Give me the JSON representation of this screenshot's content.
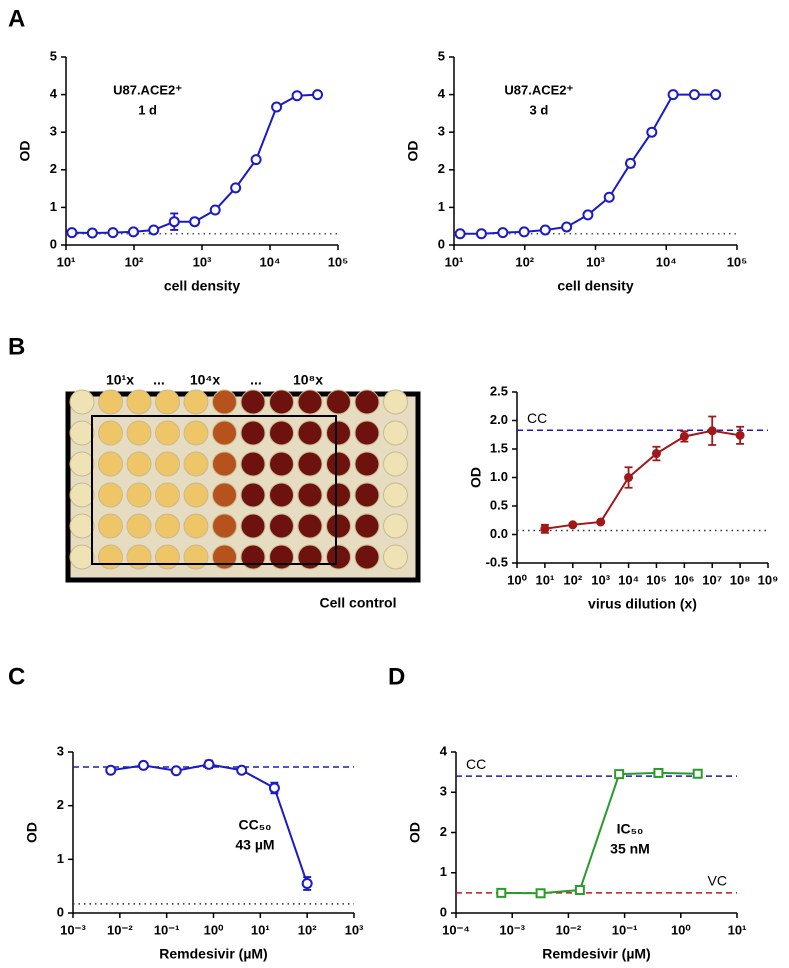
{
  "panel_labels": [
    "A",
    "B",
    "C",
    "D"
  ],
  "plate": {
    "labels": [
      "10¹x",
      "...",
      "10⁴x",
      "...",
      "10⁸x"
    ],
    "caption": "Cell control"
  },
  "chart_data": [
    {
      "type": "line",
      "title": "U87.ACE2⁺",
      "subtitle": "1 d",
      "xlabel": "cell density",
      "ylabel": "OD",
      "xscale": "log",
      "xlim": [
        10,
        100000
      ],
      "xticks": [
        {
          "value": 10,
          "label": "10¹"
        },
        {
          "value": 100,
          "label": "10²"
        },
        {
          "value": 1000,
          "label": "10³"
        },
        {
          "value": 10000,
          "label": "10⁴"
        },
        {
          "value": 100000,
          "label": "10⁵"
        }
      ],
      "ylim": [
        0,
        5
      ],
      "yticks": [
        0,
        1,
        2,
        3,
        4,
        5
      ],
      "reference_lines": [
        {
          "value": 0.3,
          "color": "#555555",
          "style": "dotted"
        }
      ],
      "series": [
        {
          "color": "#1a1ac8",
          "marker": "circle",
          "x": [
            12.2,
            24.4,
            49,
            98,
            195,
            391,
            781,
            1563,
            3125,
            6250,
            12500,
            25000,
            50000
          ],
          "values": [
            0.33,
            0.32,
            0.33,
            0.35,
            0.4,
            0.62,
            0.62,
            0.93,
            1.52,
            2.27,
            3.67,
            3.97,
            4.0
          ],
          "errors": [
            0,
            0,
            0,
            0,
            0,
            0.22,
            0,
            0,
            0,
            0,
            0,
            0,
            0
          ]
        }
      ]
    },
    {
      "type": "line",
      "title": "U87.ACE2⁺",
      "subtitle": "3 d",
      "xlabel": "cell density",
      "ylabel": "OD",
      "xscale": "log",
      "xlim": [
        10,
        100000
      ],
      "xticks": [
        {
          "value": 10,
          "label": "10¹"
        },
        {
          "value": 100,
          "label": "10²"
        },
        {
          "value": 1000,
          "label": "10³"
        },
        {
          "value": 10000,
          "label": "10⁴"
        },
        {
          "value": 100000,
          "label": "10⁵"
        }
      ],
      "ylim": [
        0,
        5
      ],
      "yticks": [
        0,
        1,
        2,
        3,
        4,
        5
      ],
      "reference_lines": [
        {
          "value": 0.3,
          "color": "#555555",
          "style": "dotted"
        }
      ],
      "series": [
        {
          "color": "#1a1ac8",
          "marker": "circle",
          "x": [
            12.2,
            24.4,
            49,
            98,
            195,
            391,
            781,
            1563,
            3125,
            6250,
            12500,
            25000,
            50000
          ],
          "values": [
            0.3,
            0.3,
            0.33,
            0.35,
            0.4,
            0.48,
            0.8,
            1.27,
            2.17,
            3.0,
            4.0,
            4.0,
            4.0
          ],
          "errors": [
            0,
            0,
            0,
            0,
            0,
            0,
            0,
            0,
            0.1,
            0,
            0,
            0,
            0
          ]
        }
      ]
    },
    {
      "type": "line",
      "xlabel": "virus dilution (x)",
      "ylabel": "OD",
      "xscale": "log",
      "xlim": [
        1,
        1000000000
      ],
      "xticks": [
        {
          "value": 1,
          "label": "10⁰"
        },
        {
          "value": 10,
          "label": "10¹"
        },
        {
          "value": 100,
          "label": "10²"
        },
        {
          "value": 1000,
          "label": "10³"
        },
        {
          "value": 10000,
          "label": "10⁴"
        },
        {
          "value": 100000,
          "label": "10⁵"
        },
        {
          "value": 1000000,
          "label": "10⁶"
        },
        {
          "value": 10000000,
          "label": "10⁷"
        },
        {
          "value": 100000000,
          "label": "10⁸"
        },
        {
          "value": 1000000000,
          "label": "10⁹"
        }
      ],
      "ylim": [
        -0.5,
        2.5
      ],
      "yticks": [
        -0.5,
        {
          "value": 0,
          "label": "0.0"
        },
        0.5,
        {
          "value": 1,
          "label": "1.0"
        },
        1.5,
        {
          "value": 2,
          "label": "2.0"
        },
        2.5
      ],
      "reference_lines": [
        {
          "value": 1.83,
          "color": "#1a1ac8",
          "style": "dashed",
          "label": "CC"
        },
        {
          "value": 0.07,
          "color": "#333333",
          "style": "dotted"
        }
      ],
      "series": [
        {
          "color": "#a01818",
          "marker": "filled-circle",
          "x": [
            10,
            100,
            1000,
            10000,
            100000,
            1000000,
            10000000,
            100000000
          ],
          "values": [
            0.1,
            0.17,
            0.22,
            1.0,
            1.42,
            1.72,
            1.82,
            1.74
          ],
          "errors": [
            0.07,
            0.02,
            0.02,
            0.18,
            0.12,
            0.09,
            0.25,
            0.15
          ]
        }
      ]
    },
    {
      "type": "line",
      "xlabel": "Remdesivir (µM)",
      "ylabel": "OD",
      "xscale": "log",
      "xlim": [
        0.001,
        1000
      ],
      "xticks": [
        {
          "value": 0.001,
          "label": "10⁻³"
        },
        {
          "value": 0.01,
          "label": "10⁻²"
        },
        {
          "value": 0.1,
          "label": "10⁻¹"
        },
        {
          "value": 1,
          "label": "10⁰"
        },
        {
          "value": 10,
          "label": "10¹"
        },
        {
          "value": 100,
          "label": "10²"
        },
        {
          "value": 1000,
          "label": "10³"
        }
      ],
      "ylim": [
        0,
        3
      ],
      "yticks": [
        0,
        1,
        2,
        3
      ],
      "reference_lines": [
        {
          "value": 2.72,
          "color": "#1a1ac8",
          "style": "dashed"
        },
        {
          "value": 0.17,
          "color": "#333333",
          "style": "dotted"
        }
      ],
      "annotations": [
        {
          "text": "CC₅₀",
          "color": "#1a1ac8"
        },
        {
          "text": "43 µM",
          "color": "#1a1ac8"
        }
      ],
      "series": [
        {
          "color": "#1a1ac8",
          "marker": "circle",
          "x": [
            0.0064,
            0.032,
            0.16,
            0.8,
            4,
            20,
            100
          ],
          "values": [
            2.66,
            2.75,
            2.65,
            2.77,
            2.66,
            2.33,
            0.55
          ],
          "errors": [
            0.03,
            0.02,
            0.02,
            0.07,
            0.02,
            0.1,
            0.12
          ]
        }
      ]
    },
    {
      "type": "line",
      "xlabel": "Remdesivir (µM)",
      "ylabel": "OD",
      "xscale": "log",
      "xlim": [
        0.0001,
        10
      ],
      "xticks": [
        {
          "value": 0.0001,
          "label": "10⁻⁴"
        },
        {
          "value": 0.001,
          "label": "10⁻³"
        },
        {
          "value": 0.01,
          "label": "10⁻²"
        },
        {
          "value": 0.1,
          "label": "10⁻¹"
        },
        {
          "value": 1,
          "label": "10⁰"
        },
        {
          "value": 10,
          "label": "10¹"
        }
      ],
      "ylim": [
        0,
        4
      ],
      "yticks": [
        0,
        1,
        2,
        3,
        4
      ],
      "reference_lines": [
        {
          "value": 3.4,
          "color": "#1a1ac8",
          "style": "dashed",
          "label": "CC"
        },
        {
          "value": 0.5,
          "color": "#b41e1e",
          "style": "dashed",
          "label": "VC"
        }
      ],
      "annotations": [
        {
          "text": "IC₅₀",
          "color": "#2a9a2a"
        },
        {
          "text": "35 nM",
          "color": "#2a9a2a"
        }
      ],
      "series": [
        {
          "color": "#2a9a2a",
          "marker": "square",
          "x": [
            0.00064,
            0.0032,
            0.016,
            0.08,
            0.4,
            2
          ],
          "values": [
            0.5,
            0.49,
            0.57,
            3.45,
            3.48,
            3.46
          ],
          "errors": [
            0.02,
            0.02,
            0.02,
            0.03,
            0.03,
            0.02
          ]
        }
      ]
    }
  ]
}
